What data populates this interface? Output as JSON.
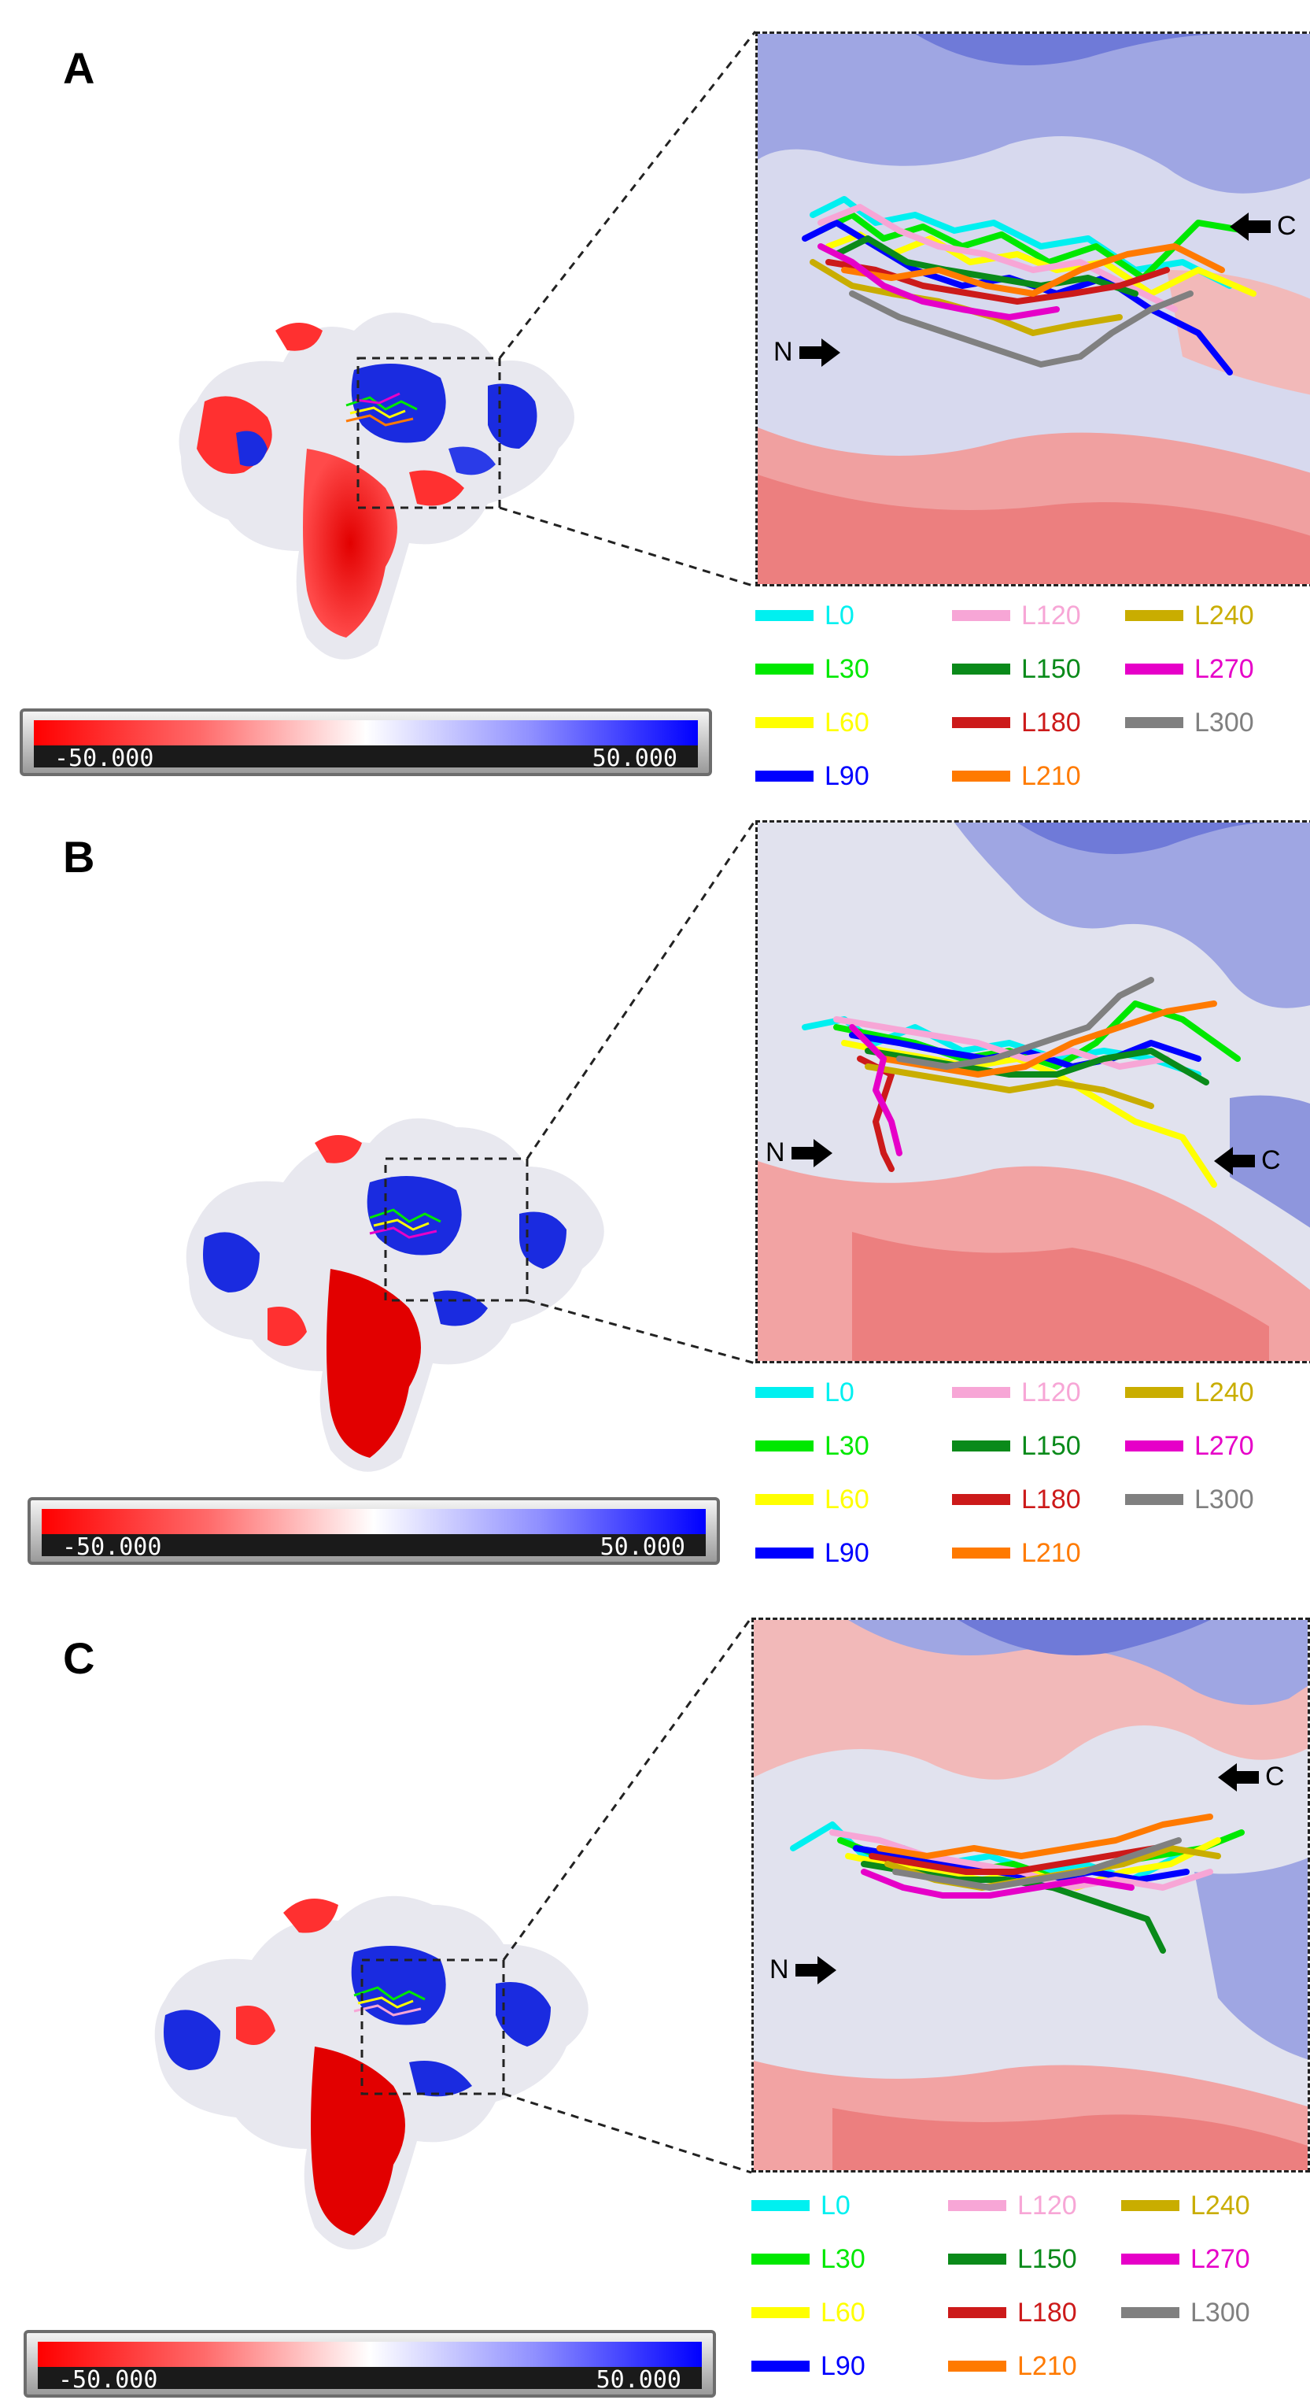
{
  "panels": [
    {
      "label": "A",
      "n_label": "N",
      "c_label": "C",
      "colorbar": {
        "min": "-50.000",
        "max": "50.000"
      }
    },
    {
      "label": "B",
      "n_label": "N",
      "c_label": "C",
      "colorbar": {
        "min": "-50.000",
        "max": "50.000"
      }
    },
    {
      "label": "C",
      "n_label": "N",
      "c_label": "C",
      "colorbar": {
        "min": "-50.000",
        "max": "50.000"
      }
    }
  ],
  "legend": [
    {
      "label": "L0",
      "color": "#00f0f0"
    },
    {
      "label": "L30",
      "color": "#00e800"
    },
    {
      "label": "L60",
      "color": "#ffff00"
    },
    {
      "label": "L90",
      "color": "#0000ff"
    },
    {
      "label": "L120",
      "color": "#f7a6d6"
    },
    {
      "label": "L150",
      "color": "#0a8a1a"
    },
    {
      "label": "L180",
      "color": "#cc1a1a"
    },
    {
      "label": "L210",
      "color": "#ff7a00"
    },
    {
      "label": "L240",
      "color": "#c9ad00"
    },
    {
      "label": "L270",
      "color": "#e600c8"
    },
    {
      "label": "L300",
      "color": "#808080"
    }
  ]
}
